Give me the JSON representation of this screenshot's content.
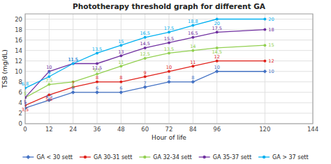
{
  "chart_data": {
    "type": "line",
    "title": "Phototherapy threshold graph for different GA",
    "x_label": "Hour of life",
    "y_label": "TSB (mg/dL)",
    "x": [
      0,
      12,
      24,
      36,
      48,
      60,
      72,
      84,
      96,
      120
    ],
    "xlim": [
      0,
      144
    ],
    "ylim": [
      0,
      21
    ],
    "xticks": [
      0,
      12,
      24,
      36,
      48,
      60,
      72,
      84,
      96,
      120,
      144
    ],
    "yticks": [
      0,
      2,
      4,
      6,
      8,
      10,
      12,
      14,
      16,
      18,
      20
    ],
    "grid": true,
    "legend": "bottom",
    "data_labels": true,
    "series": [
      {
        "name": "GA < 30 sett",
        "color": "#4472C4",
        "marker": "diamond",
        "values": [
          3,
          4.5,
          6,
          6,
          6,
          7,
          8,
          8,
          10,
          10
        ],
        "value_labels": [
          "3",
          "4,5",
          "6",
          "6",
          "6",
          "7",
          "8",
          "8",
          "10",
          "10"
        ]
      },
      {
        "name": "GA 30-31 sett",
        "color": "#E0201A",
        "marker": "circle",
        "values": [
          3.5,
          5.5,
          7,
          8,
          8,
          9,
          10,
          11,
          12,
          12
        ],
        "value_labels": [
          "3,5",
          "5,5",
          "7",
          "8",
          "8",
          "9",
          "10",
          "11",
          "12",
          "12"
        ]
      },
      {
        "name": "GA 32-34 sett",
        "color": "#92D050",
        "marker": "circle",
        "values": [
          5,
          7.5,
          8,
          9.5,
          11,
          12.5,
          13.5,
          14,
          14.5,
          15
        ],
        "value_labels": [
          "5",
          "7,5",
          "8",
          "9,5",
          "11",
          "12,5",
          "13,5",
          "14",
          "14,5",
          "15"
        ]
      },
      {
        "name": "GA 35-37 sett",
        "color": "#7030A0",
        "marker": "circle",
        "values": [
          5,
          10,
          11.5,
          11.5,
          13,
          14.5,
          15.5,
          16.5,
          17.5,
          18
        ],
        "value_labels": [
          "5",
          "10",
          "11,5",
          "11,5",
          "13",
          "14,5",
          "15,5",
          "16,5",
          "17,5",
          "18"
        ]
      },
      {
        "name": "GA > 37 sett",
        "color": "#00B0F0",
        "marker": "circle",
        "values": [
          6.8,
          9,
          11.5,
          13.5,
          15,
          16.5,
          17.5,
          18.8,
          20,
          20
        ],
        "value_labels": [
          "6,8",
          "9",
          "11,5",
          "13,5",
          "15",
          "16,5",
          "17,5",
          "18,8",
          "20",
          "20"
        ]
      }
    ]
  }
}
